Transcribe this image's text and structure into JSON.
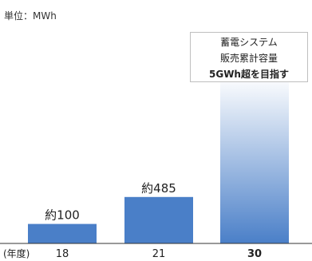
{
  "unit_label": "単位：MWh",
  "callout": {
    "line1": "蓄電システム",
    "line2": "販売累計容量",
    "line3": "5GWh超を目指す"
  },
  "chart_data": {
    "type": "bar",
    "x_prefix": "(年度)",
    "categories": [
      "18",
      "21",
      "30"
    ],
    "values": [
      100,
      485,
      5000
    ],
    "value_labels": [
      "約100",
      "約485",
      ""
    ],
    "ylabel": "",
    "ylim": [
      0,
      5000
    ],
    "colors": [
      "#4a7fc8",
      "#4a7fc8",
      "gradient"
    ],
    "gradient_colors": [
      "#ffffff",
      "#4a7fc8"
    ],
    "highlight_category": "30"
  }
}
